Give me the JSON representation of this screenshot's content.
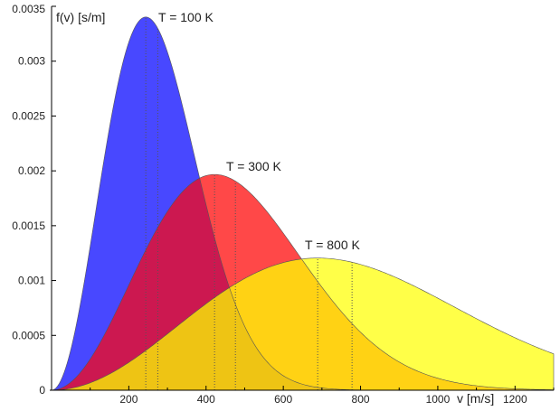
{
  "chart_data": {
    "type": "area",
    "xlabel": "v [m/s]",
    "ylabel": "f(v) [s/m]",
    "xlim": [
      0,
      1300
    ],
    "ylim": [
      0,
      0.0035
    ],
    "x_ticks": [
      200,
      400,
      600,
      800,
      1000,
      1200
    ],
    "y_ticks": [
      {
        "v": 0,
        "label": "0"
      },
      {
        "v": 0.0005,
        "label": "0.0005"
      },
      {
        "v": 0.001,
        "label": "0.001"
      },
      {
        "v": 0.0015,
        "label": "0.0015"
      },
      {
        "v": 0.002,
        "label": "0.002"
      },
      {
        "v": 0.0025,
        "label": "0.0025"
      },
      {
        "v": 0.003,
        "label": "0.003"
      },
      {
        "v": 0.0035,
        "label": "0.0035"
      }
    ],
    "grid": false,
    "x": [
      0,
      100,
      200,
      300,
      400,
      500,
      600,
      700,
      800,
      900,
      1000,
      1100,
      1200,
      1300
    ],
    "series": [
      {
        "name": "T = 100 K",
        "temperature": 100,
        "color": "#4848ff",
        "values": [
          0,
          0.001318,
          0.00318,
          0.003084,
          0.001687,
          0.000579,
          0.000131,
          2e-05,
          2e-06,
          0,
          0,
          0,
          0,
          0
        ],
        "peak_v": 244,
        "mean_v": 275
      },
      {
        "name": "T = 300 K",
        "temperature": 300,
        "color": "#ff4848",
        "values": [
          0,
          0.000284,
          0.000959,
          0.00163,
          0.001956,
          0.001845,
          0.001432,
          0.00094,
          0.000529,
          0.000258,
          0.00011,
          4.1e-05,
          1.3e-05,
          4e-06
        ],
        "peak_v": 422,
        "mean_v": 476
      },
      {
        "name": "T = 800 K",
        "temperature": 800,
        "color": "#ffff48",
        "values": [
          0,
          6.75e-05,
          0.000253,
          0.000513,
          0.000787,
          0.001018,
          0.001163,
          0.001204,
          0.001147,
          0.001015,
          0.00084,
          0.000653,
          0.000479,
          0.000332
        ],
        "peak_v": 689,
        "mean_v": 778
      }
    ],
    "overlap_colors": {
      "blue_red": "#cc1850",
      "red_yellow": "#ffd214",
      "all": "#eec414"
    }
  }
}
